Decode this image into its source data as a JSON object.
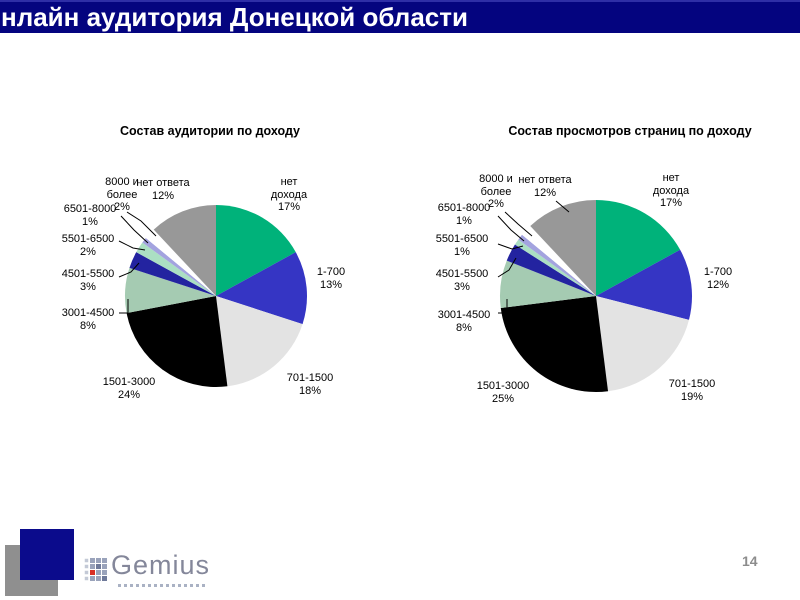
{
  "header": {
    "title": "нлайн аудитория Донецкой области"
  },
  "footer": {
    "page_number": "14",
    "logo_text": "Gemius"
  },
  "chart_data": [
    {
      "type": "pie",
      "title": "Состав аудитории по доходу",
      "unit": "%",
      "legend": "none",
      "labels_position": "outside",
      "start_angle_deg": 0,
      "direction": "clockwise",
      "segments": [
        {
          "label": "нет дохода",
          "value": 17,
          "pct_label": "17%",
          "color": "#00b27a"
        },
        {
          "label": "1-700",
          "value": 13,
          "pct_label": "13%",
          "color": "#3535c4"
        },
        {
          "label": "701-1500",
          "value": 18,
          "pct_label": "18%",
          "color": "#e3e3e3"
        },
        {
          "label": "1501-3000",
          "value": 24,
          "pct_label": "24%",
          "color": "#000000"
        },
        {
          "label": "3001-4500",
          "value": 8,
          "pct_label": "8%",
          "color": "#a5cbb2"
        },
        {
          "label": "4501-5500",
          "value": 3,
          "pct_label": "3%",
          "color": "#2323a0"
        },
        {
          "label": "5501-6500",
          "value": 2,
          "pct_label": "2%",
          "color": "#abdfc3"
        },
        {
          "label": "6501-8000",
          "value": 1,
          "pct_label": "1%",
          "color": "#a3a3df"
        },
        {
          "label": "8000 и более",
          "value": 2,
          "pct_label": "2%",
          "color": "#ffffff"
        },
        {
          "label": "нет ответа",
          "value": 12,
          "pct_label": "12%",
          "color": "#989898"
        }
      ]
    },
    {
      "type": "pie",
      "title": "Состав просмотров страниц по доходу",
      "unit": "%",
      "legend": "none",
      "labels_position": "outside",
      "start_angle_deg": 0,
      "direction": "clockwise",
      "segments": [
        {
          "label": "нет дохода",
          "value": 17,
          "pct_label": "17%",
          "color": "#00b27a"
        },
        {
          "label": "1-700",
          "value": 12,
          "pct_label": "12%",
          "color": "#3535c4"
        },
        {
          "label": "701-1500",
          "value": 19,
          "pct_label": "19%",
          "color": "#e3e3e3"
        },
        {
          "label": "1501-3000",
          "value": 25,
          "pct_label": "25%",
          "color": "#000000"
        },
        {
          "label": "3001-4500",
          "value": 8,
          "pct_label": "8%",
          "color": "#a5cbb2"
        },
        {
          "label": "4501-5500",
          "value": 3,
          "pct_label": "3%",
          "color": "#2323a0"
        },
        {
          "label": "5501-6500",
          "value": 1,
          "pct_label": "1%",
          "color": "#abdfc3"
        },
        {
          "label": "6501-8000",
          "value": 1,
          "pct_label": "1%",
          "color": "#a3a3df"
        },
        {
          "label": "8000 и более",
          "value": 2,
          "pct_label": "2%",
          "color": "#ffffff"
        },
        {
          "label": "нет ответа",
          "value": 12,
          "pct_label": "12%",
          "color": "#989898"
        }
      ]
    }
  ]
}
